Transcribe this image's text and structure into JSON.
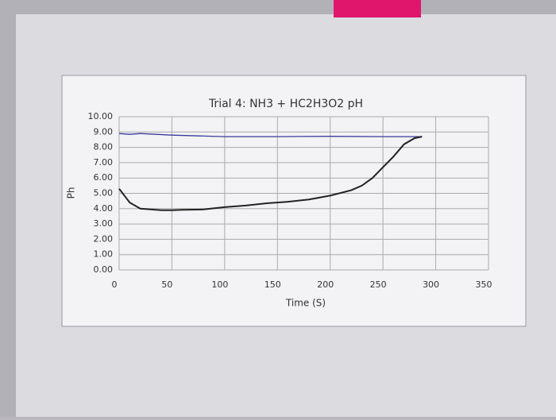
{
  "chart_data": {
    "type": "line",
    "title": "Trial 4: NH3 + HC2H3O2 pH",
    "x_label": "Time (S)",
    "y_label": "Ph",
    "xlim": [
      0,
      350
    ],
    "xticks": [
      0,
      50,
      100,
      150,
      200,
      250,
      300,
      350
    ],
    "ylim": [
      0,
      10
    ],
    "yticks": [
      {
        "value": 0,
        "label": "0.00"
      },
      {
        "value": 1,
        "label": "1.00"
      },
      {
        "value": 2,
        "label": "2.00"
      },
      {
        "value": 3,
        "label": "3.00"
      },
      {
        "value": 4,
        "label": "4.00"
      },
      {
        "value": 5,
        "label": "5.00"
      },
      {
        "value": 6,
        "label": "6.00"
      },
      {
        "value": 7,
        "label": "7.00"
      },
      {
        "value": 8,
        "label": "8.00"
      },
      {
        "value": 9,
        "label": "9.00"
      },
      {
        "value": 10,
        "label": "10.00"
      }
    ],
    "grid": true,
    "series": [
      {
        "color": "#3b3b9a",
        "x": [
          0,
          10,
          20,
          50,
          100,
          150,
          200,
          250,
          287
        ],
        "values": [
          8.9,
          8.85,
          8.9,
          8.8,
          8.7,
          8.7,
          8.72,
          8.7,
          8.7
        ]
      },
      {
        "color": "#222222",
        "x": [
          0,
          10,
          20,
          30,
          40,
          50,
          60,
          80,
          100,
          120,
          140,
          160,
          180,
          200,
          220,
          230,
          240,
          250,
          260,
          270,
          280,
          287
        ],
        "values": [
          5.3,
          4.4,
          4.0,
          3.95,
          3.9,
          3.9,
          3.92,
          3.95,
          4.1,
          4.2,
          4.35,
          4.45,
          4.6,
          4.85,
          5.2,
          5.5,
          6.0,
          6.7,
          7.4,
          8.2,
          8.6,
          8.7
        ]
      }
    ]
  }
}
